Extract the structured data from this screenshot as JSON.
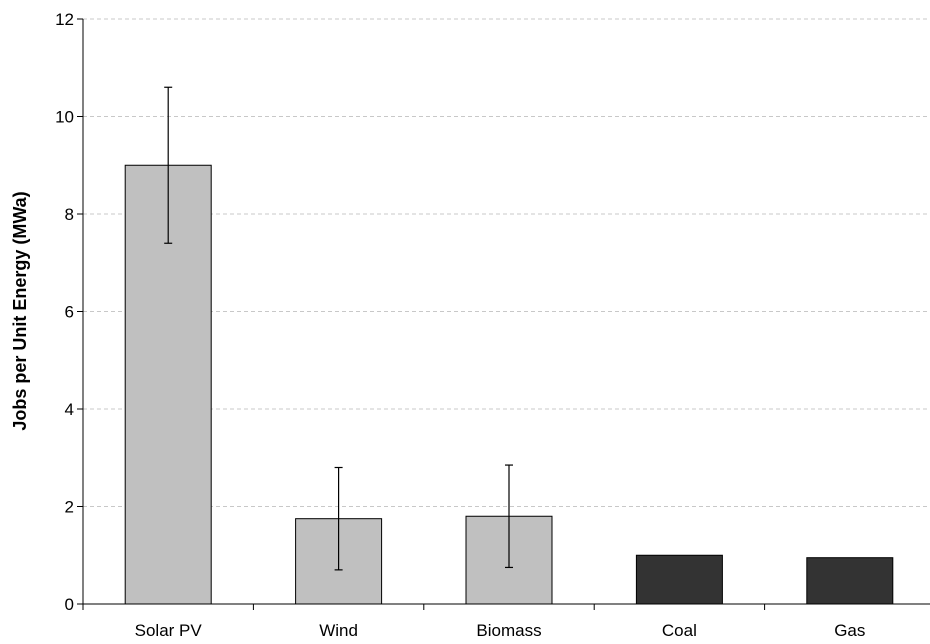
{
  "chart_data": {
    "type": "bar",
    "title": "",
    "xlabel": "",
    "ylabel": "Jobs per Unit Energy (MWa)",
    "ylim": [
      0,
      12
    ],
    "yticks": [
      0,
      2,
      4,
      6,
      8,
      10,
      12
    ],
    "grid": "horizontal dashed",
    "legend": "none",
    "categories": [
      "Solar PV",
      "Wind",
      "Biomass",
      "Coal",
      "Gas"
    ],
    "values": [
      9.0,
      1.75,
      1.8,
      1.0,
      0.95
    ],
    "error_bars": [
      {
        "low": 7.4,
        "high": 10.6
      },
      {
        "low": 0.7,
        "high": 2.8
      },
      {
        "low": 0.75,
        "high": 2.85
      },
      null,
      null
    ],
    "colors": [
      "#c0c0c0",
      "#c0c0c0",
      "#c0c0c0",
      "#333333",
      "#333333"
    ]
  }
}
